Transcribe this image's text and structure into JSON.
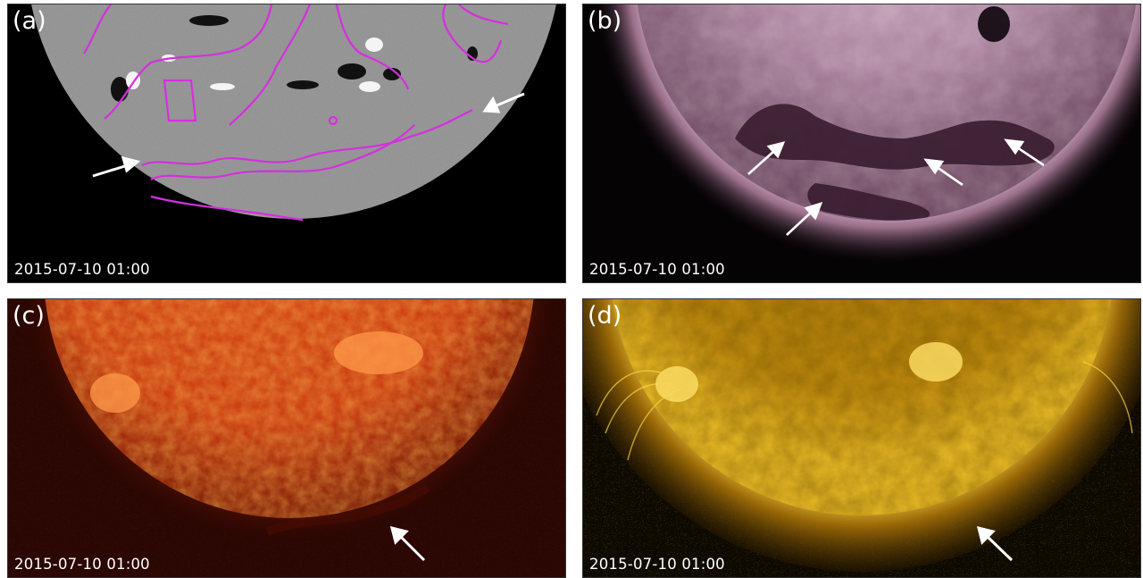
{
  "panels": [
    {
      "label": "(a)",
      "timestamp": "2015-07-10 01:00",
      "kind": "magnetogram",
      "arrow_color": "#ffffff",
      "contour_color": "#d62ee0"
    },
    {
      "label": "(b)",
      "timestamp": "2015-07-10 01:00",
      "kind": "euv-193",
      "arrow_color": "#ffffff"
    },
    {
      "label": "(c)",
      "timestamp": "2015-07-10 01:00",
      "kind": "euv-304",
      "arrow_color": "#ffffff"
    },
    {
      "label": "(d)",
      "timestamp": "2015-07-10 01:00",
      "kind": "euv-171",
      "arrow_color": "#ffffff"
    }
  ]
}
